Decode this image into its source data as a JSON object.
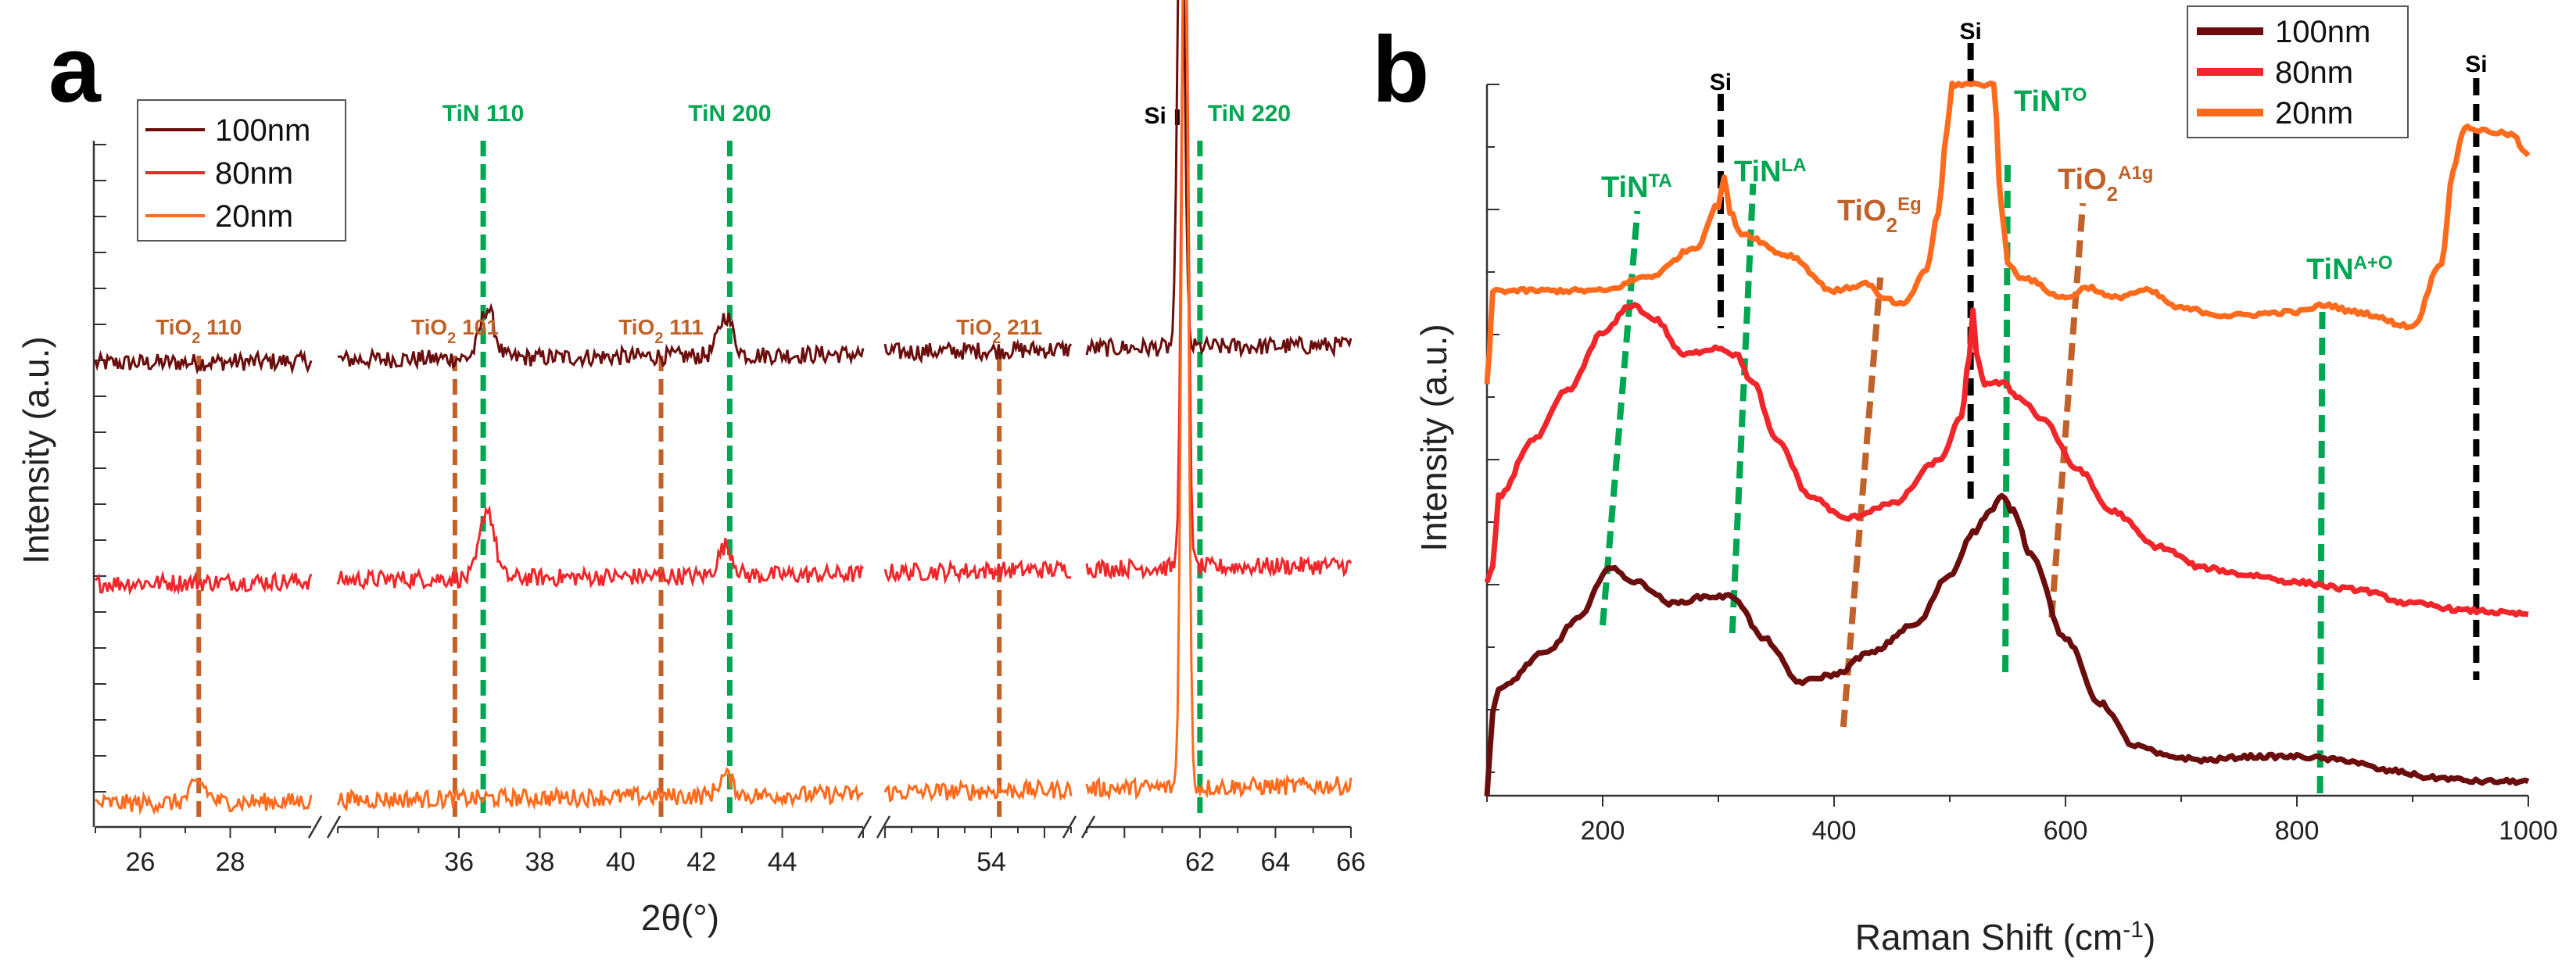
{
  "panels": {
    "a": {
      "letter": "a"
    },
    "b": {
      "letter": "b"
    }
  },
  "colors": {
    "s100": "#6b0d0d",
    "s80": "#f0262a",
    "s20": "#ff6a1c",
    "tin": "#00a651",
    "tio2": "#c0622a",
    "si": "#000000"
  },
  "chart_data": [
    {
      "type": "line",
      "panel": "a",
      "title": "",
      "xlabel": "2θ(°)",
      "ylabel": "Intensity (a.u.)",
      "xlim": [
        25,
        66
      ],
      "axis_breaks": [
        [
          29.8,
          33
        ],
        [
          46,
          50
        ],
        [
          57,
          59
        ]
      ],
      "segments": [
        [
          25,
          29.8
        ],
        [
          33,
          46
        ],
        [
          50,
          57
        ],
        [
          59,
          66
        ]
      ],
      "xticks": [
        26,
        28,
        36,
        38,
        40,
        42,
        44,
        54,
        62,
        64,
        66
      ],
      "legend": {
        "position": "top-left",
        "entries": [
          "100nm",
          "80nm",
          "20nm"
        ]
      },
      "series": [
        {
          "name": "100nm",
          "baseline": 0.44,
          "peaks": [
            [
              36.7,
              0.05
            ],
            [
              42.6,
              0.04
            ],
            [
              61.5,
              0.55
            ]
          ]
        },
        {
          "name": "80nm",
          "baseline": 0.22,
          "peaks": [
            [
              36.7,
              0.07
            ],
            [
              42.6,
              0.03
            ],
            [
              61.6,
              0.7
            ]
          ]
        },
        {
          "name": "20nm",
          "baseline": 0.0,
          "peaks": [
            [
              27.3,
              0.02
            ],
            [
              42.6,
              0.02
            ],
            [
              61.6,
              0.95
            ]
          ]
        }
      ],
      "annotations": [
        {
          "text": "TiO",
          "sub": "2",
          "tail": " 110",
          "x": 27.3,
          "kind": "tio2"
        },
        {
          "text": "TiO",
          "sub": "2",
          "tail": " 101",
          "x": 35.9,
          "kind": "tio2"
        },
        {
          "text": "TiN 110",
          "x": 36.6,
          "kind": "tin"
        },
        {
          "text": "TiO",
          "sub": "2",
          "tail": " 111",
          "x": 41.0,
          "kind": "tio2"
        },
        {
          "text": "TiN 200",
          "x": 42.7,
          "kind": "tin"
        },
        {
          "text": "TiO",
          "sub": "2",
          "tail": " 211",
          "x": 54.3,
          "kind": "tio2"
        },
        {
          "text": "Si",
          "x": 61.4,
          "kind": "si"
        },
        {
          "text": "TiN 220",
          "x": 62.0,
          "kind": "tin"
        }
      ]
    },
    {
      "type": "line",
      "panel": "b",
      "title": "",
      "xlabel": "Raman Shift (cm",
      "xlabel_sup": "-1",
      "xlabel_tail": ")",
      "ylabel": "Intensity (a.u.)",
      "xlim": [
        100,
        1000
      ],
      "xticks": [
        200,
        400,
        600,
        800,
        1000
      ],
      "legend": {
        "position": "top-right",
        "entries": [
          "100nm",
          "80nm",
          "20nm"
        ]
      },
      "series": [
        {
          "name": "100nm",
          "x": [
            100,
            105,
            110,
            150,
            180,
            205,
            230,
            260,
            290,
            312,
            340,
            370,
            400,
            430,
            470,
            500,
            520,
            535,
            545,
            555,
            570,
            600,
            630,
            660,
            690,
            720,
            760,
            800,
            840,
            880,
            920,
            960,
            1000
          ],
          "y": [
            0.0,
            0.12,
            0.15,
            0.2,
            0.25,
            0.32,
            0.3,
            0.27,
            0.28,
            0.28,
            0.22,
            0.16,
            0.17,
            0.2,
            0.24,
            0.31,
            0.37,
            0.4,
            0.42,
            0.4,
            0.34,
            0.22,
            0.13,
            0.07,
            0.055,
            0.05,
            0.055,
            0.055,
            0.05,
            0.035,
            0.025,
            0.02,
            0.02
          ]
        },
        {
          "name": "80nm",
          "x": [
            100,
            105,
            110,
            140,
            170,
            200,
            225,
            245,
            270,
            300,
            315,
            330,
            350,
            380,
            410,
            450,
            490,
            510,
            517,
            520,
            523,
            530,
            545,
            560,
            580,
            610,
            640,
            680,
            720,
            760,
            800,
            850,
            900,
            950,
            1000
          ],
          "y": [
            0.3,
            0.32,
            0.42,
            0.5,
            0.57,
            0.65,
            0.69,
            0.67,
            0.62,
            0.63,
            0.62,
            0.58,
            0.5,
            0.42,
            0.39,
            0.41,
            0.47,
            0.53,
            0.62,
            0.68,
            0.62,
            0.58,
            0.58,
            0.56,
            0.53,
            0.46,
            0.4,
            0.35,
            0.32,
            0.31,
            0.3,
            0.29,
            0.27,
            0.26,
            0.255
          ]
        },
        {
          "name": "20nm",
          "x": [
            100,
            102,
            105,
            150,
            200,
            240,
            280,
            300,
            305,
            310,
            320,
            360,
            400,
            430,
            440,
            460,
            480,
            490,
            498,
            502,
            538,
            545,
            550,
            560,
            600,
            620,
            640,
            670,
            700,
            740,
            800,
            825,
            850,
            900,
            925,
            935,
            945,
            960,
            985,
            1000
          ],
          "y": [
            0.58,
            0.62,
            0.71,
            0.71,
            0.71,
            0.73,
            0.77,
            0.83,
            0.87,
            0.82,
            0.79,
            0.76,
            0.71,
            0.72,
            0.7,
            0.69,
            0.74,
            0.82,
            0.94,
            1.0,
            1.0,
            0.82,
            0.75,
            0.73,
            0.7,
            0.715,
            0.7,
            0.71,
            0.685,
            0.675,
            0.68,
            0.69,
            0.68,
            0.66,
            0.75,
            0.88,
            0.94,
            0.935,
            0.93,
            0.9
          ]
        }
      ],
      "annotations": [
        {
          "text": "Si",
          "x": 302,
          "kind": "si"
        },
        {
          "text": "Si",
          "x": 518,
          "kind": "si"
        },
        {
          "text": "Si",
          "x": 955,
          "kind": "si"
        },
        {
          "text": "TiN",
          "sup": "TA",
          "x": 215,
          "kind": "tin"
        },
        {
          "text": "TiN",
          "sup": "LA",
          "x": 325,
          "kind": "tin"
        },
        {
          "text": "TiO",
          "sub": "2",
          "sup": "Eg",
          "x": 425,
          "kind": "tio2"
        },
        {
          "text": "TiN",
          "sup": "TO",
          "x": 550,
          "kind": "tin"
        },
        {
          "text": "TiO",
          "sub": "2",
          "sup": "A1g",
          "x": 608,
          "kind": "tio2"
        },
        {
          "text": "TiN",
          "sup": "A+O",
          "x": 822,
          "kind": "tin"
        }
      ]
    }
  ]
}
